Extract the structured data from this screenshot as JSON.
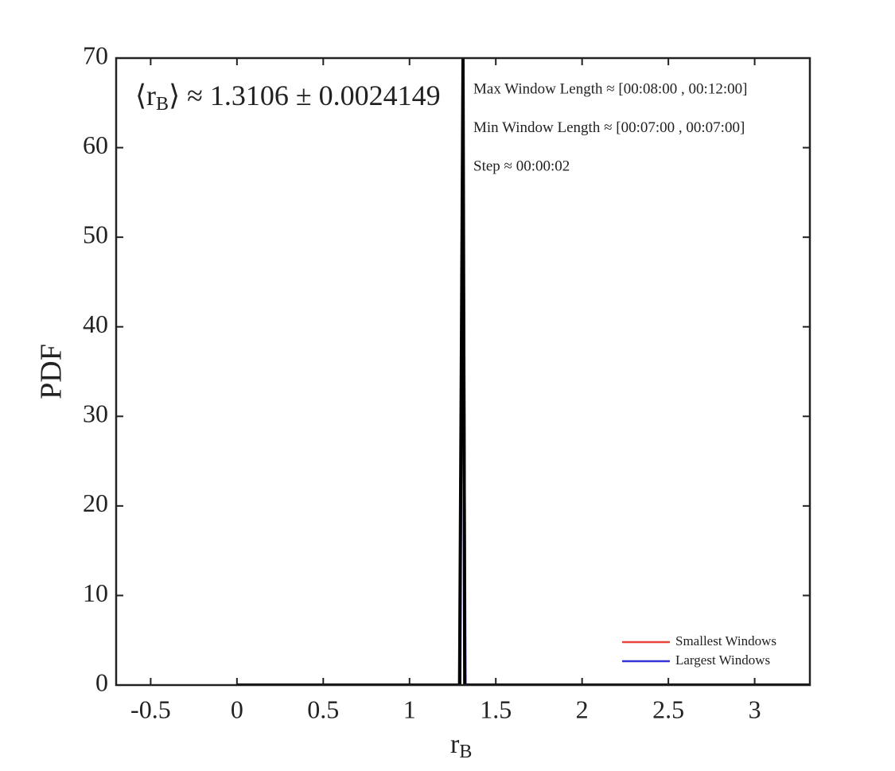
{
  "chart_data": {
    "type": "line",
    "xlabel": {
      "main": "r",
      "sub": "B"
    },
    "ylabel": "PDF",
    "annotation": {
      "open": "⟨r",
      "sub": "B",
      "rest": "⟩ ≈ 1.3106 ± 0.0024149"
    },
    "info": [
      "Max Window Length ≈ [00:08:00 , 00:12:00]",
      "Min Window Length ≈ [00:07:00 , 00:07:00]",
      "Step ≈ 00:00:02"
    ],
    "xlim": [
      -0.7,
      3.32
    ],
    "ylim": [
      0,
      70
    ],
    "xticks": [
      -0.5,
      0,
      0.5,
      1,
      1.5,
      2,
      2.5,
      3
    ],
    "yticks": [
      0,
      10,
      20,
      30,
      40,
      50,
      60,
      70
    ],
    "legend": "bottom-right",
    "series": [
      {
        "name": "Smallest Windows",
        "color": "#e8453c",
        "x": [
          1.29,
          1.3106,
          1.32
        ],
        "values": [
          0,
          70,
          0
        ]
      },
      {
        "name": "Largest Windows",
        "color": "#3434d8",
        "x": [
          1.295,
          1.3106,
          1.325
        ],
        "values": [
          0,
          70,
          0
        ]
      },
      {
        "color": "#000000",
        "x": [
          0,
          1.29,
          1.31,
          1.32,
          3.32
        ],
        "values": [
          0,
          0,
          70,
          0,
          0
        ]
      }
    ]
  }
}
